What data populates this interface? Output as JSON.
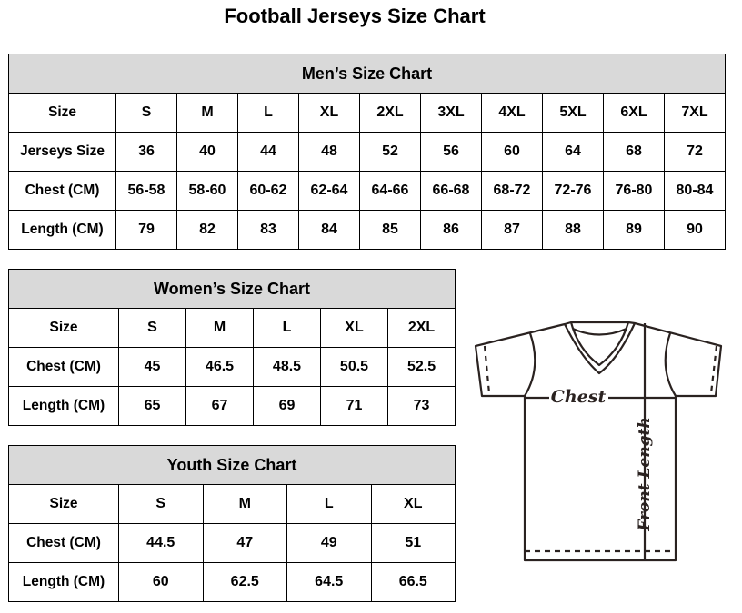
{
  "title": "Football Jerseys Size Chart",
  "men": {
    "heading": "Men’s Size Chart",
    "rows": [
      {
        "label": "Size",
        "values": [
          "S",
          "M",
          "L",
          "XL",
          "2XL",
          "3XL",
          "4XL",
          "5XL",
          "6XL",
          "7XL"
        ]
      },
      {
        "label": "Jerseys Size",
        "values": [
          "36",
          "40",
          "44",
          "48",
          "52",
          "56",
          "60",
          "64",
          "68",
          "72"
        ]
      },
      {
        "label": "Chest (CM)",
        "values": [
          "56-58",
          "58-60",
          "60-62",
          "62-64",
          "64-66",
          "66-68",
          "68-72",
          "72-76",
          "76-80",
          "80-84"
        ]
      },
      {
        "label": "Length (CM)",
        "values": [
          "79",
          "82",
          "83",
          "84",
          "85",
          "86",
          "87",
          "88",
          "89",
          "90"
        ]
      }
    ]
  },
  "women": {
    "heading": "Women’s Size Chart",
    "rows": [
      {
        "label": "Size",
        "values": [
          "S",
          "M",
          "L",
          "XL",
          "2XL"
        ]
      },
      {
        "label": "Chest (CM)",
        "values": [
          "45",
          "46.5",
          "48.5",
          "50.5",
          "52.5"
        ]
      },
      {
        "label": "Length (CM)",
        "values": [
          "65",
          "67",
          "69",
          "71",
          "73"
        ]
      }
    ]
  },
  "youth": {
    "heading": "Youth Size Chart",
    "rows": [
      {
        "label": "Size",
        "values": [
          "S",
          "M",
          "L",
          "XL"
        ]
      },
      {
        "label": "Chest (CM)",
        "values": [
          "44.5",
          "47",
          "49",
          "51"
        ]
      },
      {
        "label": "Length (CM)",
        "values": [
          "60",
          "62.5",
          "64.5",
          "66.5"
        ]
      }
    ]
  },
  "diagram": {
    "chest_label": "Chest",
    "length_label": "Front Length"
  }
}
